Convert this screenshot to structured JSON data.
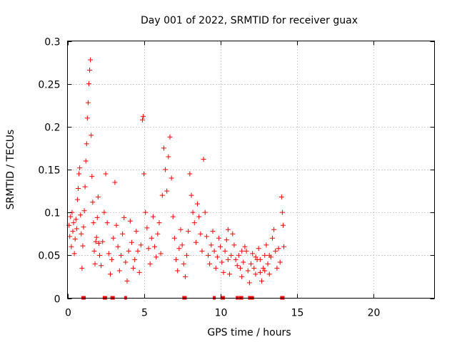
{
  "chart_data": {
    "type": "scatter",
    "title": "Day 001 of 2022, SRMTID for receiver guax",
    "xlabel": "GPS time / hours",
    "ylabel": "SRMTID / TECUs",
    "xlim": [
      0,
      24
    ],
    "ylim": [
      0,
      0.3
    ],
    "x_ticks": [
      0,
      5,
      10,
      15,
      20
    ],
    "x_tick_labels": [
      "0",
      "5",
      "10",
      "15",
      "20"
    ],
    "y_ticks": [
      0,
      0.05,
      0.1,
      0.15,
      0.2,
      0.25,
      0.3
    ],
    "y_tick_labels": [
      "0",
      "0.05",
      "0.1",
      "0.15",
      "0.2",
      "0.25",
      "0.3"
    ],
    "grid": true,
    "marker": "+",
    "color": "#ff0000",
    "series": [
      {
        "name": "SRMTID",
        "points": [
          [
            0.1,
            0.085
          ],
          [
            0.15,
            0.072
          ],
          [
            0.2,
            0.095
          ],
          [
            0.25,
            0.06
          ],
          [
            0.3,
            0.1
          ],
          [
            0.35,
            0.078
          ],
          [
            0.4,
            0.088
          ],
          [
            0.45,
            0.052
          ],
          [
            0.5,
            0.069
          ],
          [
            0.55,
            0.092
          ],
          [
            0.6,
            0.081
          ],
          [
            0.65,
            0.115
          ],
          [
            0.7,
            0.128
          ],
          [
            0.75,
            0.145
          ],
          [
            0.8,
            0.152
          ],
          [
            0.85,
            0.097
          ],
          [
            0.9,
            0.075
          ],
          [
            0.95,
            0.035
          ],
          [
            1.0,
            0.061
          ],
          [
            1.05,
            0.083
          ],
          [
            1.1,
            0.102
          ],
          [
            1.15,
            0.13
          ],
          [
            1.2,
            0.16
          ],
          [
            1.25,
            0.18
          ],
          [
            1.3,
            0.21
          ],
          [
            1.35,
            0.228
          ],
          [
            1.4,
            0.25
          ],
          [
            1.45,
            0.266
          ],
          [
            1.5,
            0.278
          ],
          [
            1.55,
            0.19
          ],
          [
            1.6,
            0.142
          ],
          [
            1.65,
            0.112
          ],
          [
            1.7,
            0.088
          ],
          [
            1.75,
            0.055
          ],
          [
            1.8,
            0.04
          ],
          [
            1.85,
            0.066
          ],
          [
            1.9,
            0.071
          ],
          [
            1.95,
            0.094
          ],
          [
            2.0,
            0.118
          ],
          [
            2.05,
            0.064
          ],
          [
            2.1,
            0.05
          ],
          [
            2.2,
            0.038
          ],
          [
            2.3,
            0.066
          ],
          [
            2.4,
            0.1
          ],
          [
            2.5,
            0.145
          ],
          [
            2.6,
            0.088
          ],
          [
            2.7,
            0.052
          ],
          [
            2.8,
            0.028
          ],
          [
            2.9,
            0.045
          ],
          [
            3.0,
            0.07
          ],
          [
            3.1,
            0.135
          ],
          [
            3.2,
            0.085
          ],
          [
            3.3,
            0.06
          ],
          [
            3.4,
            0.032
          ],
          [
            3.5,
            0.05
          ],
          [
            3.6,
            0.075
          ],
          [
            3.7,
            0.094
          ],
          [
            3.8,
            0.042
          ],
          [
            3.9,
            0.02
          ],
          [
            4.0,
            0.055
          ],
          [
            4.1,
            0.09
          ],
          [
            4.2,
            0.065
          ],
          [
            4.3,
            0.035
          ],
          [
            4.4,
            0.045
          ],
          [
            4.5,
            0.078
          ],
          [
            4.6,
            0.055
          ],
          [
            4.7,
            0.03
          ],
          [
            4.8,
            0.062
          ],
          [
            4.9,
            0.208
          ],
          [
            4.95,
            0.212
          ],
          [
            5.0,
            0.145
          ],
          [
            5.1,
            0.1
          ],
          [
            5.2,
            0.082
          ],
          [
            5.3,
            0.058
          ],
          [
            5.4,
            0.04
          ],
          [
            5.5,
            0.07
          ],
          [
            5.6,
            0.095
          ],
          [
            5.7,
            0.06
          ],
          [
            5.8,
            0.048
          ],
          [
            5.9,
            0.075
          ],
          [
            6.0,
            0.088
          ],
          [
            6.1,
            0.052
          ],
          [
            6.2,
            0.12
          ],
          [
            6.3,
            0.175
          ],
          [
            6.4,
            0.15
          ],
          [
            6.5,
            0.125
          ],
          [
            6.6,
            0.165
          ],
          [
            6.7,
            0.188
          ],
          [
            6.8,
            0.14
          ],
          [
            6.9,
            0.095
          ],
          [
            7.0,
            0.07
          ],
          [
            7.1,
            0.045
          ],
          [
            7.2,
            0.032
          ],
          [
            7.3,
            0.058
          ],
          [
            7.4,
            0.08
          ],
          [
            7.5,
            0.062
          ],
          [
            7.6,
            0.04
          ],
          [
            7.7,
            0.025
          ],
          [
            7.8,
            0.05
          ],
          [
            7.9,
            0.078
          ],
          [
            8.0,
            0.145
          ],
          [
            8.1,
            0.12
          ],
          [
            8.2,
            0.1
          ],
          [
            8.3,
            0.088
          ],
          [
            8.4,
            0.065
          ],
          [
            8.5,
            0.11
          ],
          [
            8.6,
            0.095
          ],
          [
            8.7,
            0.075
          ],
          [
            8.8,
            0.055
          ],
          [
            8.9,
            0.162
          ],
          [
            9.0,
            0.1
          ],
          [
            9.1,
            0.072
          ],
          [
            9.2,
            0.05
          ],
          [
            9.3,
            0.04
          ],
          [
            9.4,
            0.062
          ],
          [
            9.5,
            0.078
          ],
          [
            9.6,
            0.055
          ],
          [
            9.7,
            0.035
          ],
          [
            9.8,
            0.048
          ],
          [
            9.9,
            0.07
          ],
          [
            10.0,
            0.06
          ],
          [
            10.1,
            0.042
          ],
          [
            10.2,
            0.03
          ],
          [
            10.3,
            0.055
          ],
          [
            10.4,
            0.068
          ],
          [
            10.5,
            0.045
          ],
          [
            10.6,
            0.028
          ],
          [
            10.7,
            0.05
          ],
          [
            10.8,
            0.075
          ],
          [
            10.9,
            0.062
          ],
          [
            11.0,
            0.045
          ],
          [
            11.1,
            0.038
          ],
          [
            11.2,
            0.05
          ],
          [
            11.3,
            0.035
          ],
          [
            11.4,
            0.025
          ],
          [
            11.5,
            0.042
          ],
          [
            11.6,
            0.06
          ],
          [
            11.7,
            0.055
          ],
          [
            11.8,
            0.032
          ],
          [
            11.9,
            0.018
          ],
          [
            12.0,
            0.04
          ],
          [
            12.1,
            0.052
          ],
          [
            12.2,
            0.035
          ],
          [
            12.3,
            0.028
          ],
          [
            12.4,
            0.045
          ],
          [
            12.5,
            0.058
          ],
          [
            12.6,
            0.03
          ],
          [
            12.7,
            0.02
          ],
          [
            12.8,
            0.035
          ],
          [
            12.9,
            0.05
          ],
          [
            13.0,
            0.062
          ],
          [
            13.1,
            0.04
          ],
          [
            13.2,
            0.028
          ],
          [
            13.3,
            0.048
          ],
          [
            13.4,
            0.07
          ],
          [
            13.5,
            0.08
          ],
          [
            13.6,
            0.055
          ],
          [
            13.7,
            0.035
          ],
          [
            13.8,
            0.058
          ],
          [
            13.9,
            0.042
          ],
          [
            14.0,
            0.118
          ],
          [
            14.05,
            0.1
          ],
          [
            14.1,
            0.085
          ],
          [
            14.15,
            0.06
          ],
          [
            12.3,
            0.048
          ],
          [
            12.6,
            0.045
          ],
          [
            12.9,
            0.032
          ],
          [
            13.2,
            0.05
          ],
          [
            11.4,
            0.055
          ],
          [
            10.5,
            0.08
          ]
        ]
      }
    ],
    "zero_markers_x": [
      1.0,
      1.1,
      2.4,
      2.5,
      2.9,
      3.0,
      3.8,
      7.6,
      7.7,
      9.6,
      10.1,
      10.2,
      11.1,
      11.3,
      11.4,
      11.9,
      12.0,
      12.1,
      14.0,
      14.1
    ]
  }
}
